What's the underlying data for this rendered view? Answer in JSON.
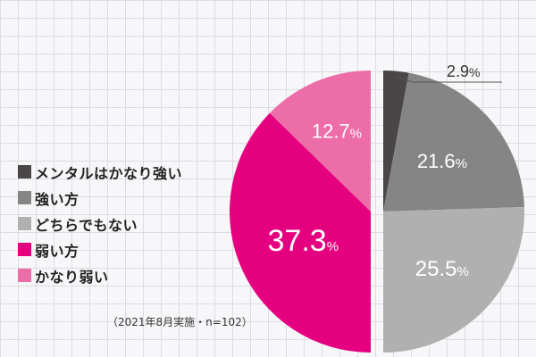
{
  "chart_data": {
    "type": "pie",
    "categories": [
      "メンタルはかなり強い",
      "強い方",
      "どちらでもない",
      "弱い方",
      "かなり弱い"
    ],
    "values": [
      2.9,
      21.6,
      25.5,
      37.3,
      12.7
    ],
    "labels": [
      {
        "num": "2.9",
        "unit": "%"
      },
      {
        "num": "21.6",
        "unit": "%"
      },
      {
        "num": "25.5",
        "unit": "%"
      },
      {
        "num": "37.3",
        "unit": "%"
      },
      {
        "num": "12.7",
        "unit": "%"
      }
    ],
    "colors": [
      "#4a4546",
      "#858585",
      "#b0b0b0",
      "#e5007f",
      "#ed6da8"
    ],
    "legend_position": "left",
    "note": "（2021年8月実施・n=102）"
  }
}
